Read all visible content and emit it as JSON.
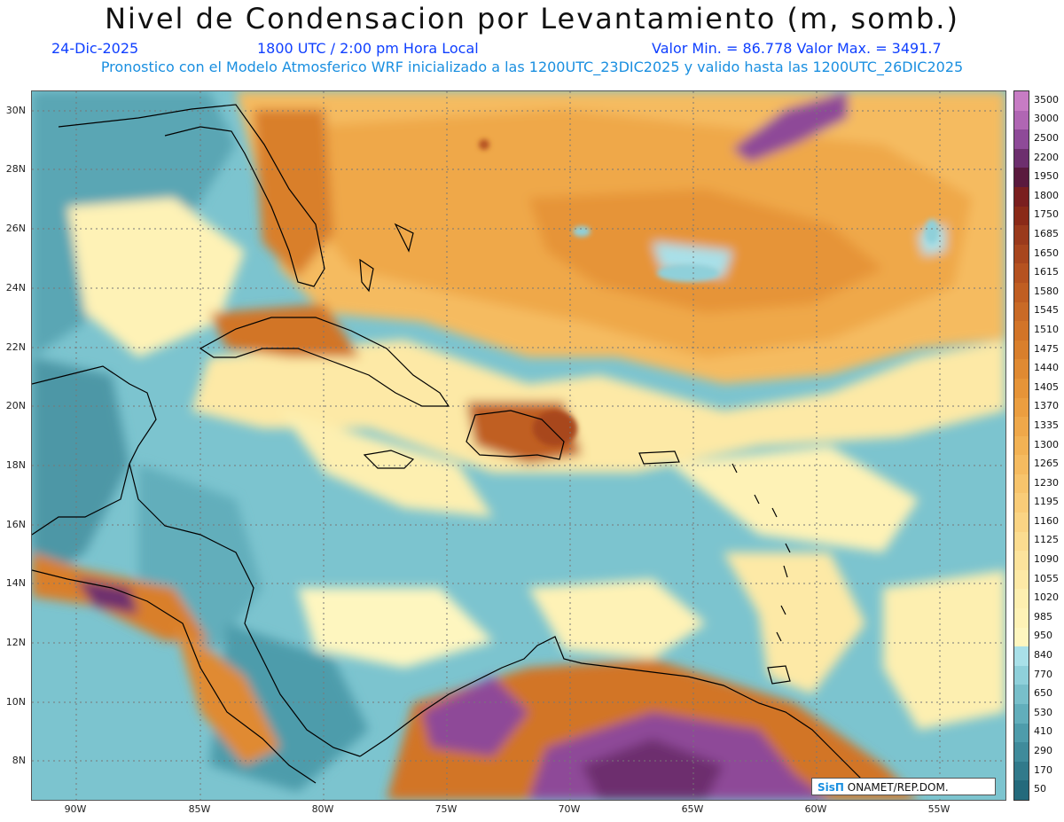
{
  "title": "Nivel de Condensacion por Levantamiento (m, somb.)",
  "date": "24-Dic-2025",
  "time": "1800 UTC / 2:00 pm Hora Local",
  "minmax": "Valor Min. = 86.778  Valor Max. = 3491.7",
  "description": "Pronostico con el Modelo Atmosferico WRF inicializado a las 1200UTC_23DIC2025 y valido hasta las  1200UTC_26DIC2025",
  "lat_labels": [
    "30N",
    "28N",
    "26N",
    "24N",
    "22N",
    "20N",
    "18N",
    "16N",
    "14N",
    "12N",
    "10N",
    "8N"
  ],
  "lon_labels": [
    "90W",
    "85W",
    "80W",
    "75W",
    "70W",
    "65W",
    "60W",
    "55W"
  ],
  "colorbar": {
    "labels": [
      "3500",
      "3000",
      "2500",
      "2200",
      "1950",
      "1800",
      "1750",
      "1685",
      "1650",
      "1615",
      "1580",
      "1545",
      "1510",
      "1475",
      "1440",
      "1405",
      "1370",
      "1335",
      "1300",
      "1265",
      "1230",
      "1195",
      "1160",
      "1125",
      "1090",
      "1055",
      "1020",
      "985",
      "950",
      "840",
      "770",
      "650",
      "530",
      "410",
      "290",
      "170",
      "50"
    ],
    "colors": [
      "#c77cc4",
      "#b066b3",
      "#8e4a98",
      "#6d2f6e",
      "#5a1a3e",
      "#7a1f1f",
      "#8a2a18",
      "#9a3a1c",
      "#a8461e",
      "#b55220",
      "#c05e22",
      "#c96a26",
      "#d27428",
      "#d97f2c",
      "#e08a32",
      "#e69438",
      "#eb9e40",
      "#efa84a",
      "#f2b254",
      "#f5bb60",
      "#f7c46c",
      "#f9cc78",
      "#fad484",
      "#fbdc90",
      "#fce39c",
      "#fde9a6",
      "#fdefb0",
      "#fef2b6",
      "#fef6bf",
      "#a9e0e8",
      "#8fd0da",
      "#78bfca",
      "#62aebb",
      "#4e9cab",
      "#3f8b9b",
      "#317a8b",
      "#246a7c"
    ]
  },
  "credit": {
    "logo": "SisΠ",
    "text": " ONAMET/REP.DOM."
  }
}
